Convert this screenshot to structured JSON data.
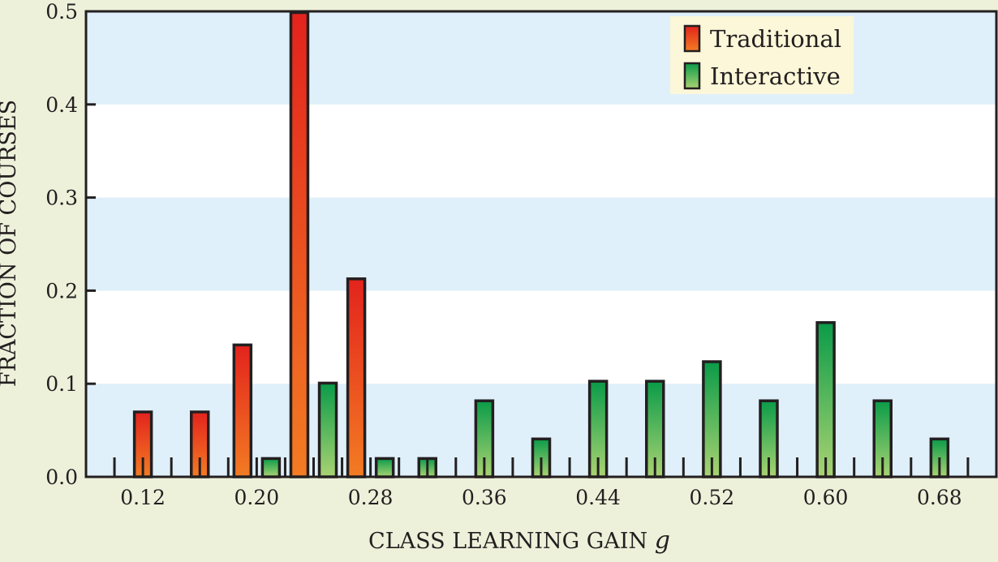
{
  "chart_data": {
    "type": "bar",
    "xlabel": "CLASS LEARNING GAIN",
    "xlabel_symbol": "g",
    "ylabel": "FRACTION OF COURSES",
    "ylim": [
      0,
      0.5
    ],
    "xlim": [
      0.08,
      0.72
    ],
    "bin_width": 0.04,
    "y_ticks": [
      "0.0",
      "0.1",
      "0.2",
      "0.3",
      "0.4",
      "0.5"
    ],
    "x_ticks": [
      "0.12",
      "0.20",
      "0.28",
      "0.36",
      "0.44",
      "0.52",
      "0.60",
      "0.68"
    ],
    "grid": "alternating horizontal bands",
    "legend_position": "top-right",
    "colors": {
      "background": "#eef1da",
      "band": "#dff0fa",
      "legend_box": "#fbf7d8",
      "traditional_top": "#e3231d",
      "traditional_bottom": "#f37c23",
      "interactive_top": "#0a9b48",
      "interactive_bottom": "#a9d372",
      "outline": "#231f20"
    },
    "series": [
      {
        "name": "Traditional",
        "points": [
          {
            "x": 0.12,
            "y": 0.071
          },
          {
            "x": 0.16,
            "y": 0.071
          },
          {
            "x": 0.2,
            "y": 0.143
          },
          {
            "x": 0.24,
            "y": 0.5
          },
          {
            "x": 0.28,
            "y": 0.214
          }
        ]
      },
      {
        "name": "Interactive",
        "points": [
          {
            "x": 0.2,
            "y": 0.021
          },
          {
            "x": 0.24,
            "y": 0.102
          },
          {
            "x": 0.28,
            "y": 0.021
          },
          {
            "x": 0.32,
            "y": 0.021
          },
          {
            "x": 0.36,
            "y": 0.083
          },
          {
            "x": 0.4,
            "y": 0.042
          },
          {
            "x": 0.44,
            "y": 0.104
          },
          {
            "x": 0.48,
            "y": 0.104
          },
          {
            "x": 0.52,
            "y": 0.125
          },
          {
            "x": 0.56,
            "y": 0.083
          },
          {
            "x": 0.6,
            "y": 0.167
          },
          {
            "x": 0.64,
            "y": 0.083
          },
          {
            "x": 0.68,
            "y": 0.042
          }
        ]
      }
    ]
  }
}
